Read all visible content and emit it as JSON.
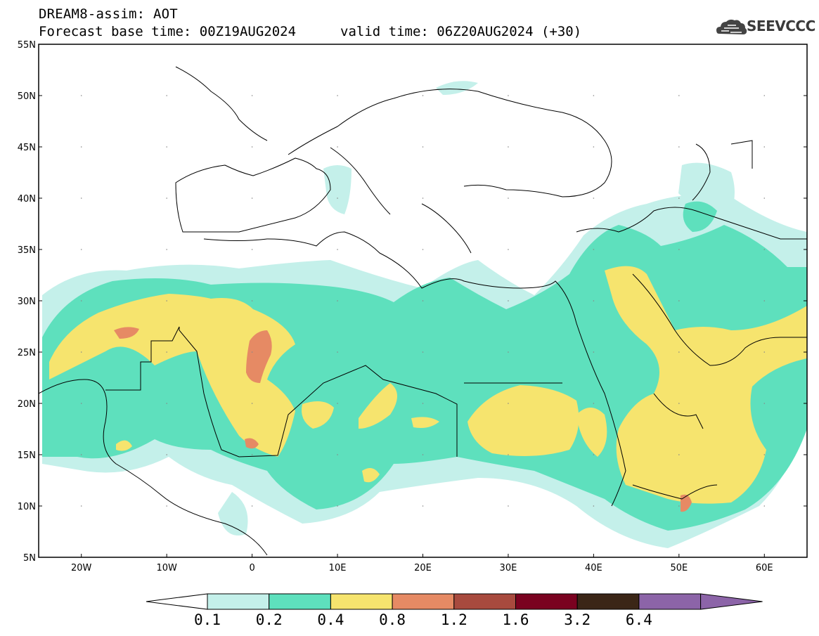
{
  "title": {
    "line1": "DREAM8-assim: AOT",
    "base_time": "Forecast base time: 00Z19AUG2024",
    "valid_time": "valid time: 06Z20AUG2024 (+30)"
  },
  "logo": {
    "text": "SEEVCCC",
    "icon": "cloud-icon"
  },
  "map": {
    "projection": "cylindrical",
    "lon_range": [
      -25,
      65
    ],
    "lat_range": [
      5,
      55
    ],
    "lat_ticks": [
      "55N",
      "50N",
      "45N",
      "40N",
      "35N",
      "30N",
      "25N",
      "20N",
      "15N",
      "10N",
      "5N"
    ],
    "lon_ticks": [
      "20W",
      "10W",
      "0",
      "10E",
      "20E",
      "30E",
      "40E",
      "50E",
      "60E"
    ],
    "field": "Aerosol optical thickness (AOT)"
  },
  "colorbar": {
    "labels": [
      "0.1",
      "0.2",
      "0.4",
      "0.8",
      "1.2",
      "1.6",
      "3.2",
      "6.4"
    ],
    "colors": [
      "#ffffff",
      "#c4f0ea",
      "#5ee0bd",
      "#f6e46e",
      "#e68a64",
      "#a84a3e",
      "#7a0220",
      "#3b2617",
      "#8c64a8"
    ]
  },
  "colors": {
    "c1": "#c4f0ea",
    "c2": "#5ee0bd",
    "c3": "#f6e46e",
    "c4": "#e68a64",
    "c5": "#a84a3e"
  }
}
